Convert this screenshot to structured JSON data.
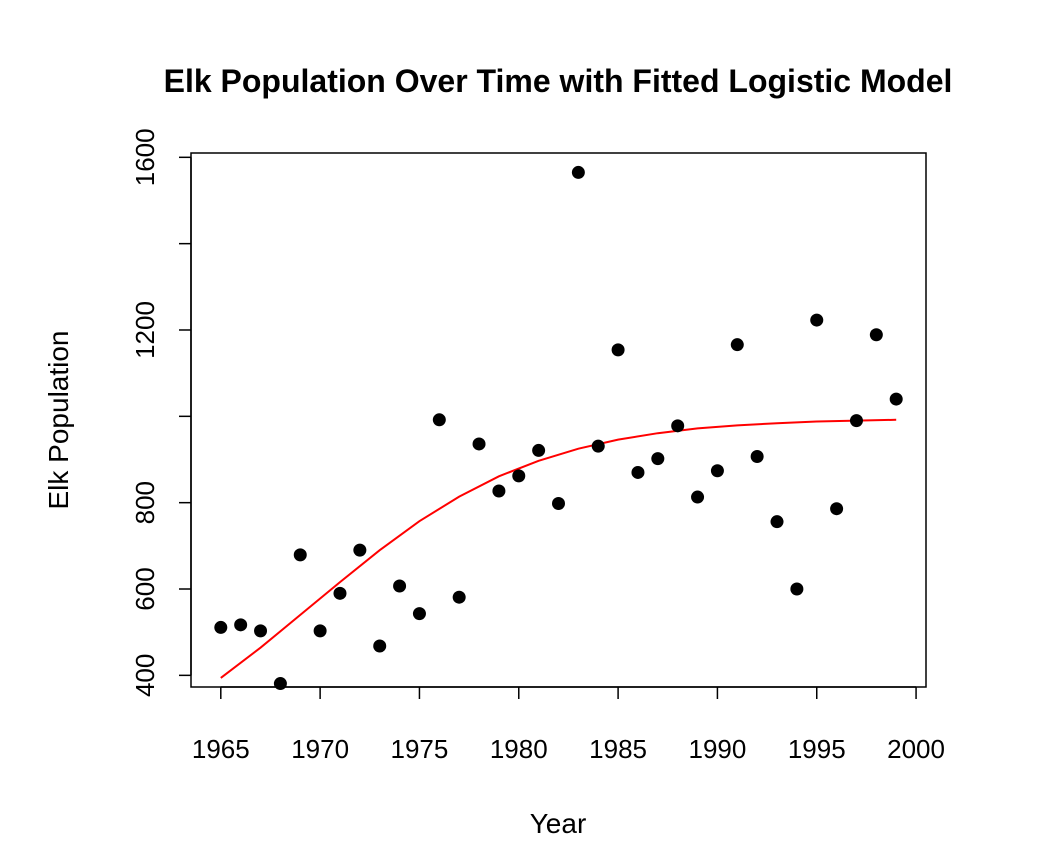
{
  "chart_data": {
    "type": "scatter",
    "title": "Elk Population Over Time with Fitted Logistic Model",
    "xlabel": "Year",
    "ylabel": "Elk Population",
    "xlim": [
      1963.5,
      2000.5
    ],
    "ylim": [
      373,
      1610
    ],
    "x_ticks": [
      1965,
      1970,
      1975,
      1980,
      1985,
      1990,
      1995,
      2000
    ],
    "y_ticks": [
      400,
      600,
      800,
      1000,
      1200,
      1400,
      1600
    ],
    "y_tick_labels_shown": [
      "400",
      "600",
      "800",
      "1200",
      "1600"
    ],
    "grid": false,
    "point_color": "#000000",
    "line_color": "#ff0000",
    "series": [
      {
        "kind": "points",
        "x": [
          1965,
          1966,
          1967,
          1968,
          1969,
          1970,
          1971,
          1972,
          1973,
          1974,
          1975,
          1976,
          1977,
          1978,
          1979,
          1980,
          1981,
          1982,
          1983,
          1984,
          1985,
          1986,
          1987,
          1988,
          1989,
          1990,
          1991,
          1992,
          1993,
          1994,
          1995,
          1996,
          1997,
          1998,
          1999
        ],
        "y": [
          511,
          517,
          503,
          381,
          679,
          503,
          590,
          690,
          468,
          607,
          543,
          992,
          581,
          936,
          827,
          862,
          921,
          798,
          1565,
          931,
          1154,
          870,
          902,
          978,
          813,
          874,
          1166,
          907,
          756,
          600,
          1223,
          786,
          990,
          1189,
          1040
        ]
      },
      {
        "kind": "line",
        "x": [
          1965,
          1967,
          1969,
          1971,
          1973,
          1975,
          1977,
          1979,
          1981,
          1983,
          1985,
          1987,
          1989,
          1991,
          1993,
          1995,
          1997,
          1999
        ],
        "y": [
          394,
          464,
          540,
          616,
          690,
          757,
          814,
          861,
          897,
          925,
          946,
          961,
          972,
          979,
          984,
          988,
          990,
          992
        ]
      }
    ]
  }
}
